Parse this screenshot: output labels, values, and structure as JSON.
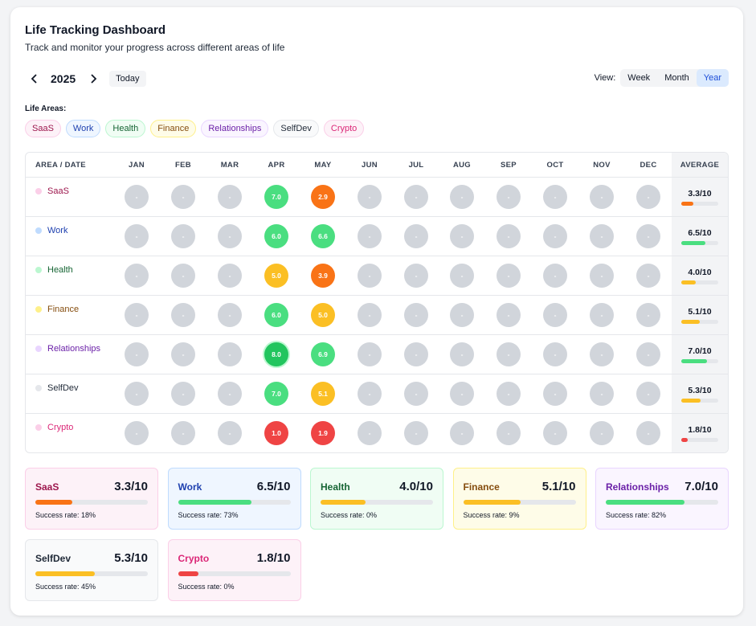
{
  "header": {
    "title": "Life Tracking Dashboard",
    "subtitle": "Track and monitor your progress across different areas of life"
  },
  "nav": {
    "year": "2025",
    "today_label": "Today",
    "prev_icon": "chevron-left-icon",
    "next_icon": "chevron-right-icon"
  },
  "view": {
    "label": "View:",
    "options": [
      "Week",
      "Month",
      "Year"
    ],
    "selected": "Year"
  },
  "areas_label": "Life Areas:",
  "table": {
    "corner_label": "AREA / DATE",
    "months": [
      "JAN",
      "FEB",
      "MAR",
      "APR",
      "MAY",
      "JUN",
      "JUL",
      "AUG",
      "SEP",
      "OCT",
      "NOV",
      "DEC"
    ],
    "average_label": "AVERAGE",
    "empty_value": "-"
  },
  "areas": [
    {
      "name": "SaaS",
      "text_color": "#9d174d",
      "bg": "#fdf2f8",
      "border": "#fbcfe8",
      "dot": "#fbcfe8",
      "scores": [
        null,
        null,
        null,
        "7.0",
        "2.9",
        null,
        null,
        null,
        null,
        null,
        null,
        null
      ],
      "cell_colors": [
        null,
        null,
        null,
        "#4ade80",
        "#f97316",
        null,
        null,
        null,
        null,
        null,
        null,
        null
      ],
      "average": "3.3/10",
      "avg_value": 0.33,
      "avg_color": "#f97316",
      "success_rate": "Success rate: 18%"
    },
    {
      "name": "Work",
      "text_color": "#1e40af",
      "bg": "#eff6ff",
      "border": "#bfdbfe",
      "dot": "#bfdbfe",
      "scores": [
        null,
        null,
        null,
        "6.0",
        "6.6",
        null,
        null,
        null,
        null,
        null,
        null,
        null
      ],
      "cell_colors": [
        null,
        null,
        null,
        "#4ade80",
        "#4ade80",
        null,
        null,
        null,
        null,
        null,
        null,
        null
      ],
      "average": "6.5/10",
      "avg_value": 0.65,
      "avg_color": "#4ade80",
      "success_rate": "Success rate: 73%"
    },
    {
      "name": "Health",
      "text_color": "#166534",
      "bg": "#f0fdf4",
      "border": "#bbf7d0",
      "dot": "#bbf7d0",
      "scores": [
        null,
        null,
        null,
        "5.0",
        "3.9",
        null,
        null,
        null,
        null,
        null,
        null,
        null
      ],
      "cell_colors": [
        null,
        null,
        null,
        "#fbbf24",
        "#f97316",
        null,
        null,
        null,
        null,
        null,
        null,
        null
      ],
      "average": "4.0/10",
      "avg_value": 0.4,
      "avg_color": "#fbbf24",
      "success_rate": "Success rate: 0%"
    },
    {
      "name": "Finance",
      "text_color": "#854d0e",
      "bg": "#fefce8",
      "border": "#fef08a",
      "dot": "#fef08a",
      "scores": [
        null,
        null,
        null,
        "6.0",
        "5.0",
        null,
        null,
        null,
        null,
        null,
        null,
        null
      ],
      "cell_colors": [
        null,
        null,
        null,
        "#4ade80",
        "#fbbf24",
        null,
        null,
        null,
        null,
        null,
        null,
        null
      ],
      "average": "5.1/10",
      "avg_value": 0.51,
      "avg_color": "#fbbf24",
      "success_rate": "Success rate: 9%"
    },
    {
      "name": "Relationships",
      "text_color": "#6b21a8",
      "bg": "#faf5ff",
      "border": "#e9d5ff",
      "dot": "#e9d5ff",
      "scores": [
        null,
        null,
        null,
        "8.0",
        "6.9",
        null,
        null,
        null,
        null,
        null,
        null,
        null
      ],
      "cell_colors": [
        null,
        null,
        null,
        "#22c55e",
        "#4ade80",
        null,
        null,
        null,
        null,
        null,
        null,
        null
      ],
      "average": "7.0/10",
      "avg_value": 0.7,
      "avg_color": "#4ade80",
      "success_rate": "Success rate: 82%"
    },
    {
      "name": "SelfDev",
      "text_color": "#1f2937",
      "bg": "#f9fafb",
      "border": "#e5e7eb",
      "dot": "#e5e7eb",
      "scores": [
        null,
        null,
        null,
        "7.0",
        "5.1",
        null,
        null,
        null,
        null,
        null,
        null,
        null
      ],
      "cell_colors": [
        null,
        null,
        null,
        "#4ade80",
        "#fbbf24",
        null,
        null,
        null,
        null,
        null,
        null,
        null
      ],
      "average": "5.3/10",
      "avg_value": 0.53,
      "avg_color": "#fbbf24",
      "success_rate": "Success rate: 45%"
    },
    {
      "name": "Crypto",
      "text_color": "#db2777",
      "bg": "#fdf2f8",
      "border": "#fbcfe8",
      "dot": "#fbcfe8",
      "scores": [
        null,
        null,
        null,
        "1.0",
        "1.9",
        null,
        null,
        null,
        null,
        null,
        null,
        null
      ],
      "cell_colors": [
        null,
        null,
        null,
        "#ef4444",
        "#ef4444",
        null,
        null,
        null,
        null,
        null,
        null,
        null
      ],
      "average": "1.8/10",
      "avg_value": 0.18,
      "avg_color": "#ef4444",
      "success_rate": "Success rate: 0%"
    }
  ]
}
